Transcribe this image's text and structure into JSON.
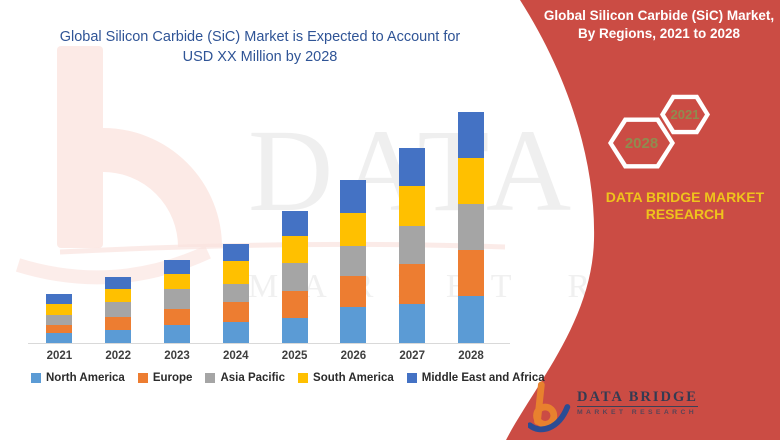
{
  "left_chart": {
    "title_line1": "Global Silicon Carbide (SiC) Market is Expected to Account for",
    "title_line2": "USD XX Million by 2028"
  },
  "chart_data": {
    "type": "bar",
    "stacked": true,
    "title": "Global Silicon Carbide (SiC) Market is Expected to Account for USD XX Million by 2028",
    "xlabel": "",
    "ylabel": "",
    "units": "relative index (actual values shown as USD XX Million)",
    "grid": false,
    "legend_position": "bottom",
    "axis_color": "#D9D9D9",
    "categories": [
      "2021",
      "2022",
      "2023",
      "2024",
      "2025",
      "2026",
      "2027",
      "2028"
    ],
    "series": [
      {
        "name": "North America",
        "color": "#5B9BD5",
        "values": [
          10,
          13,
          18,
          21,
          25,
          36,
          39,
          47
        ]
      },
      {
        "name": "Europe",
        "color": "#ED7D31",
        "values": [
          8,
          13,
          16,
          20,
          27,
          31,
          40,
          46
        ]
      },
      {
        "name": "Asia Pacific",
        "color": "#A5A5A5",
        "values": [
          10,
          15,
          20,
          18,
          28,
          30,
          38,
          46
        ]
      },
      {
        "name": "South America",
        "color": "#FFC000",
        "values": [
          11,
          13,
          15,
          23,
          27,
          33,
          40,
          46
        ]
      },
      {
        "name": "Middle East and Africa",
        "color": "#4472C4",
        "values": [
          10,
          12,
          14,
          17,
          25,
          33,
          38,
          46
        ]
      }
    ],
    "totals": [
      49,
      66,
      83,
      99,
      132,
      163,
      195,
      231
    ]
  },
  "right_panel": {
    "bg_color": "#CB4C44",
    "title_line1": "Global Silicon Carbide (SiC) Market,",
    "title_line2": "By Regions, 2021 to 2028",
    "hexagons": [
      {
        "year": "2021"
      },
      {
        "year": "2028"
      }
    ],
    "brand_line1": "DATA BRIDGE MARKET",
    "brand_line2": "RESEARCH"
  },
  "logo": {
    "name": "DATA BRIDGE",
    "subtitle": "MARKET RESEARCH"
  },
  "watermark": {
    "text1": "DATA BRIDGE",
    "text2": "MARKET RESEARCH"
  },
  "colors": {
    "title_blue": "#2F5496",
    "panel_red": "#CB4C44",
    "hex_year_olive": "#8F8C4F",
    "brand_yellow": "#EFC31C",
    "logo_orange": "#E8812E",
    "logo_navy": "#2B4C94"
  }
}
